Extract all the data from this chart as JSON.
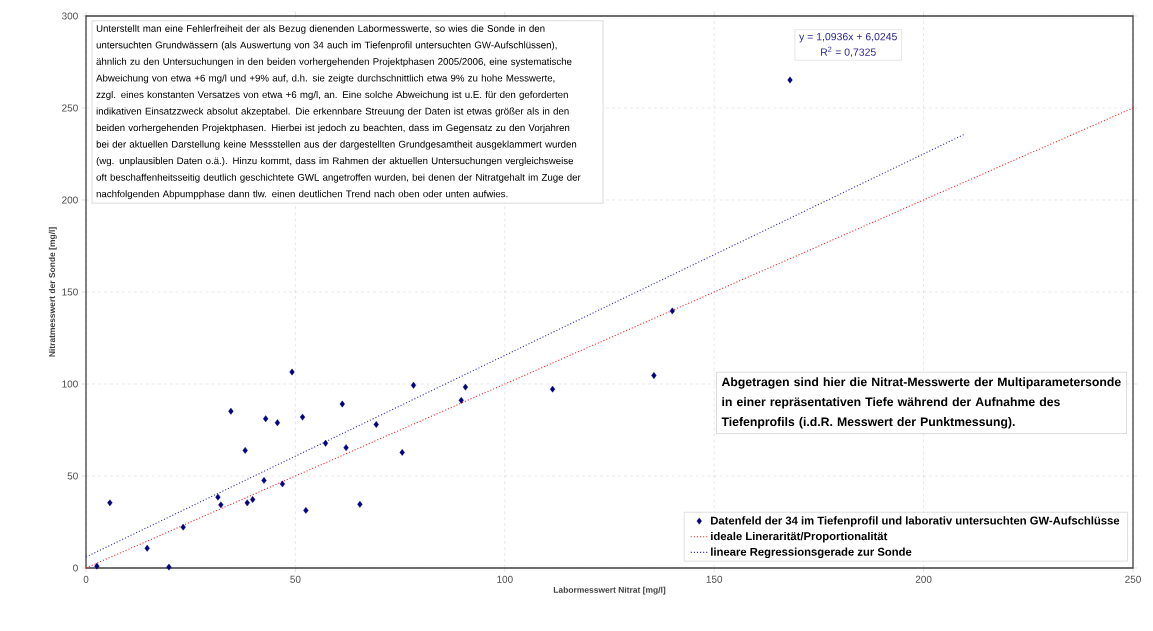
{
  "chart_data": {
    "type": "scatter",
    "xlabel": "Labormesswert Nitrat [mg/l]",
    "ylabel": "Nitratmesswert der Sonde [mg/l]",
    "xlim": [
      0,
      250
    ],
    "ylim": [
      0,
      300
    ],
    "xticks": [
      0,
      50,
      100,
      150,
      200,
      250
    ],
    "yticks": [
      0,
      50,
      100,
      150,
      200,
      250,
      300
    ],
    "grid": true,
    "legend": "bottom right",
    "series": [
      {
        "name": "Datenfeld der 34 im Tiefenprofil und laborativ untersuchten GW-Aufschlüsse",
        "color": "#000080",
        "marker": "diamond",
        "x": [
          2.6,
          5.7,
          14.6,
          19.8,
          23.2,
          31.5,
          32.2,
          34.6,
          38.0,
          38.5,
          39.8,
          42.5,
          42.9,
          45.7,
          46.9,
          49.2,
          51.7,
          52.5,
          57.2,
          61.2,
          62.1,
          65.4,
          69.3,
          75.5,
          78.2,
          89.6,
          90.6,
          111.4,
          135.6,
          140,
          168.1
        ],
        "values": [
          1,
          35.4,
          10.7,
          0.5,
          22.2,
          38.5,
          34.3,
          85.2,
          63.9,
          35.4,
          37.2,
          47.6,
          81.1,
          78.9,
          45.7,
          106.5,
          82,
          31.3,
          67.8,
          89.1,
          65.4,
          34.6,
          78,
          62.8,
          99.3,
          91.1,
          98.3,
          97.2,
          104.6,
          139.7,
          265.2
        ]
      },
      {
        "name": "ideale Linerarität/Proportionalität",
        "type": "line",
        "color": "#ff2020",
        "line_style": "dotted",
        "x": [
          0,
          250
        ],
        "values": [
          0,
          250
        ]
      },
      {
        "name": "lineare Regressionsgerade zur Sonde",
        "type": "line",
        "color": "#3030b0",
        "line_style": "dotted",
        "x": [
          0,
          210
        ],
        "values": [
          6,
          236
        ]
      }
    ],
    "annotations": [
      "Unterstellt man eine Fehlerfreiheit der als Bezug dienenden Labormesswerte, so wies die Sonde in den untersuchten Grundwässern (als Auswertung von 34 auch im Tiefenprofil untersuchten GW-Aufschlüssen), ähnlich zu den Untersuchungen in den beiden vorhergehenden Projektphasen 2005/2006, eine systematische Abweichung von etwa +6 mg/l und +9% auf, d.h. sie zeigte durchschnittlich etwa 9% zu hohe Messwerte, zzgl. eines konstanten Versatzes von etwa +6 mg/l, an. Eine solche Abweichung ist u.E. für den geforderten indikativen Einsatzzweck absolut akzeptabel. Die erkennbare Streuung der Daten ist etwas größer als in den beiden vorhergehenden Projektphasen. Hierbei ist jedoch zu beachten, dass im Gegensatz zu den Vorjahren bei der aktuellen Darstellung keine Messstellen aus der dargestellten Grundgesamtheit ausgeklammert wurden (wg. unplausiblen Daten o.ä.). Hinzu kommt, dass im Rahmen der aktuellen Untersuchungen vergleichsweise oft beschaffenheitsseitig deutlich geschichtete GWL angetroffen wurden, bei denen der Nitratgehalt im Zuge der nachfolgenden Abpumpphase dann tlw. einen deutlichen Trend nach oben oder unten aufwies.",
      "y = 1,0936x + 6,0245",
      "R$^{2}$ = 0,7325",
      "**Abgetragen sind hier die Nitrat-Messwerte der Multiparametersonde in einer repräsentativen Tiefe während der Aufnahme des Tiefenprofils (i.d.R. Messwert der Punktmessung).**"
    ]
  }
}
